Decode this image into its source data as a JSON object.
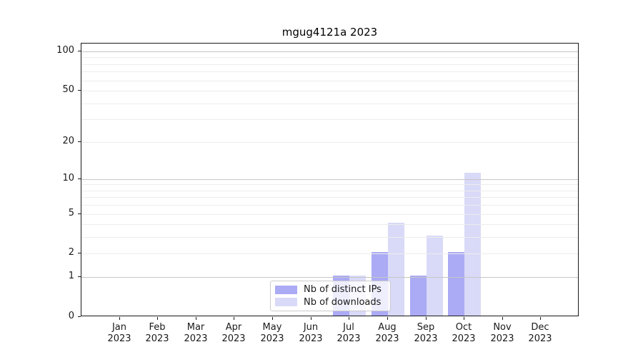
{
  "title": "mgug4121a 2023",
  "chart_data": {
    "type": "bar",
    "title": "mgug4121a 2023",
    "categories": [
      "Jan 2023",
      "Feb 2023",
      "Mar 2023",
      "Apr 2023",
      "May 2023",
      "Jun 2023",
      "Jul 2023",
      "Aug 2023",
      "Sep 2023",
      "Oct 2023",
      "Nov 2023",
      "Dec 2023"
    ],
    "series": [
      {
        "name": "Nb of distinct IPs",
        "color": "#aaaaf5",
        "values": [
          0,
          0,
          0,
          0,
          0,
          0,
          1,
          2,
          1,
          2,
          0,
          0
        ]
      },
      {
        "name": "Nb of downloads",
        "color": "#d9d9f8",
        "values": [
          0,
          0,
          0,
          0,
          0,
          0,
          1,
          4,
          3,
          11,
          0,
          0
        ]
      }
    ],
    "y_ticks": [
      0,
      1,
      2,
      5,
      10,
      20,
      50,
      100
    ],
    "y_scale": "log1p",
    "ylim": [
      0,
      115
    ],
    "xlabel": "",
    "ylabel": "",
    "grid": "horizontal",
    "legend_position": "lower center"
  },
  "colors": {
    "bar_distinct_ips": "#aaaaf5",
    "bar_downloads": "#d9d9f8",
    "grid_major": "#c6c6c6",
    "grid_minor": "#ededed",
    "axis": "#1a1a1a",
    "legend_border": "#cccccc"
  }
}
